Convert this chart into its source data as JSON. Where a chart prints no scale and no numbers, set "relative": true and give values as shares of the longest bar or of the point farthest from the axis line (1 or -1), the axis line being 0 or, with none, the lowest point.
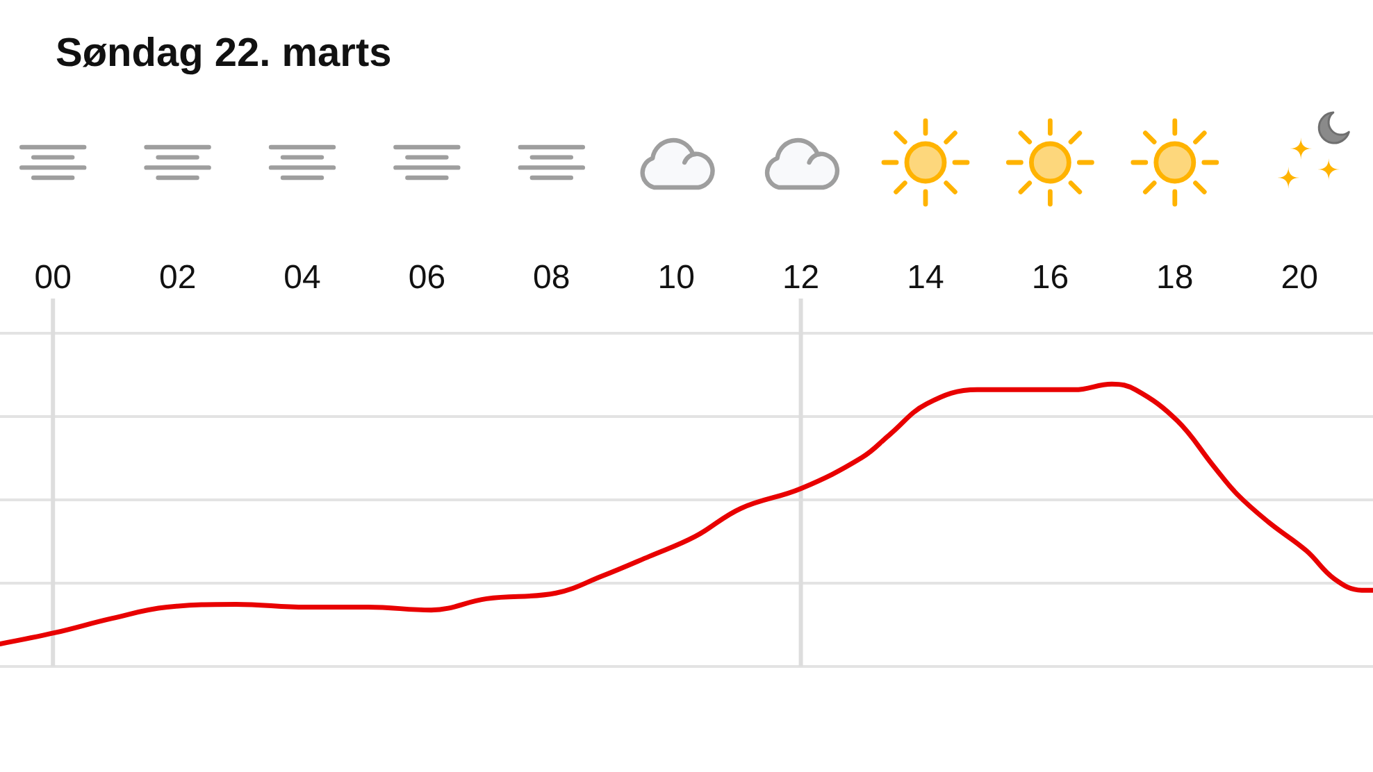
{
  "chart_data": {
    "type": "line",
    "title": "Søndag 22. marts",
    "x": [
      -0.85,
      0.04,
      0.94,
      1.83,
      2.94,
      4.06,
      5.06,
      6.07,
      6.96,
      8.07,
      8.81,
      9.57,
      10.3,
      11.04,
      12.0,
      12.98,
      13.42,
      14.02,
      14.83,
      15.65,
      16.39,
      16.99,
      17.37,
      18.04,
      18.62,
      19.0,
      19.51,
      20.11,
      20.56,
      21.0,
      21.18
    ],
    "values": [
      0.08,
      0.12,
      0.17,
      0.21,
      0.22,
      0.21,
      0.21,
      0.2,
      0.24,
      0.26,
      0.32,
      0.39,
      0.46,
      0.56,
      0.63,
      0.74,
      0.82,
      0.93,
      0.98,
      0.98,
      0.98,
      1,
      0.98,
      0.87,
      0.71,
      0.61,
      0.51,
      0.41,
      0.31,
      0.27,
      0.27
    ],
    "color": "#e80000",
    "relative": true,
    "xlim": [
      -0.85,
      21.18
    ],
    "xticks": [
      {
        "value": 0,
        "label": "00"
      },
      {
        "value": 2,
        "label": "02"
      },
      {
        "value": 4,
        "label": "04"
      },
      {
        "value": 6,
        "label": "06"
      },
      {
        "value": 8,
        "label": "08"
      },
      10,
      12,
      14,
      16,
      18,
      20
    ],
    "tick_labels": "x",
    "grid": "y",
    "ref_lines": [
      {
        "axis": "x",
        "value": 0,
        "color": "#dddddd"
      },
      {
        "axis": "x",
        "value": 12,
        "color": "#dddddd"
      }
    ]
  }
}
